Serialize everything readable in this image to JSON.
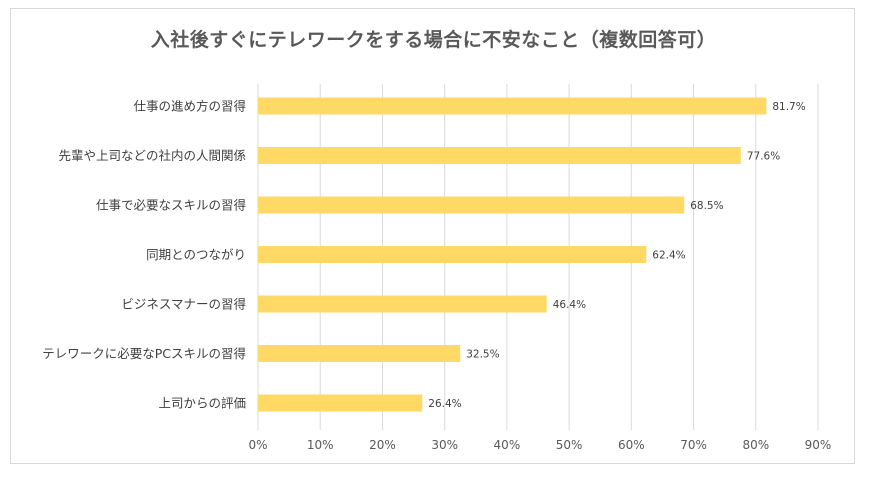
{
  "chart_data": {
    "type": "bar",
    "orientation": "horizontal",
    "title": "入社後すぐにテレワークをする場合に不安なこと（複数回答可）",
    "categories": [
      "仕事の進め方の習得",
      "先輩や上司などの社内の人間関係",
      "仕事で必要なスキルの習得",
      "同期とのつながり",
      "ビジネスマナーの習得",
      "テレワークに必要なPCスキルの習得",
      "上司からの評価"
    ],
    "values": [
      81.7,
      77.6,
      68.5,
      62.4,
      46.4,
      32.5,
      26.4
    ],
    "value_labels": [
      "81.7%",
      "77.6%",
      "68.5%",
      "62.4%",
      "46.4%",
      "32.5%",
      "26.4%"
    ],
    "xlim": [
      0,
      90
    ],
    "xticks": [
      "0%",
      "10%",
      "20%",
      "30%",
      "40%",
      "50%",
      "60%",
      "70%",
      "80%",
      "90%"
    ],
    "grid": "vertical",
    "bar_color": "#ffd966",
    "grid_color": "#d9d9d9"
  }
}
